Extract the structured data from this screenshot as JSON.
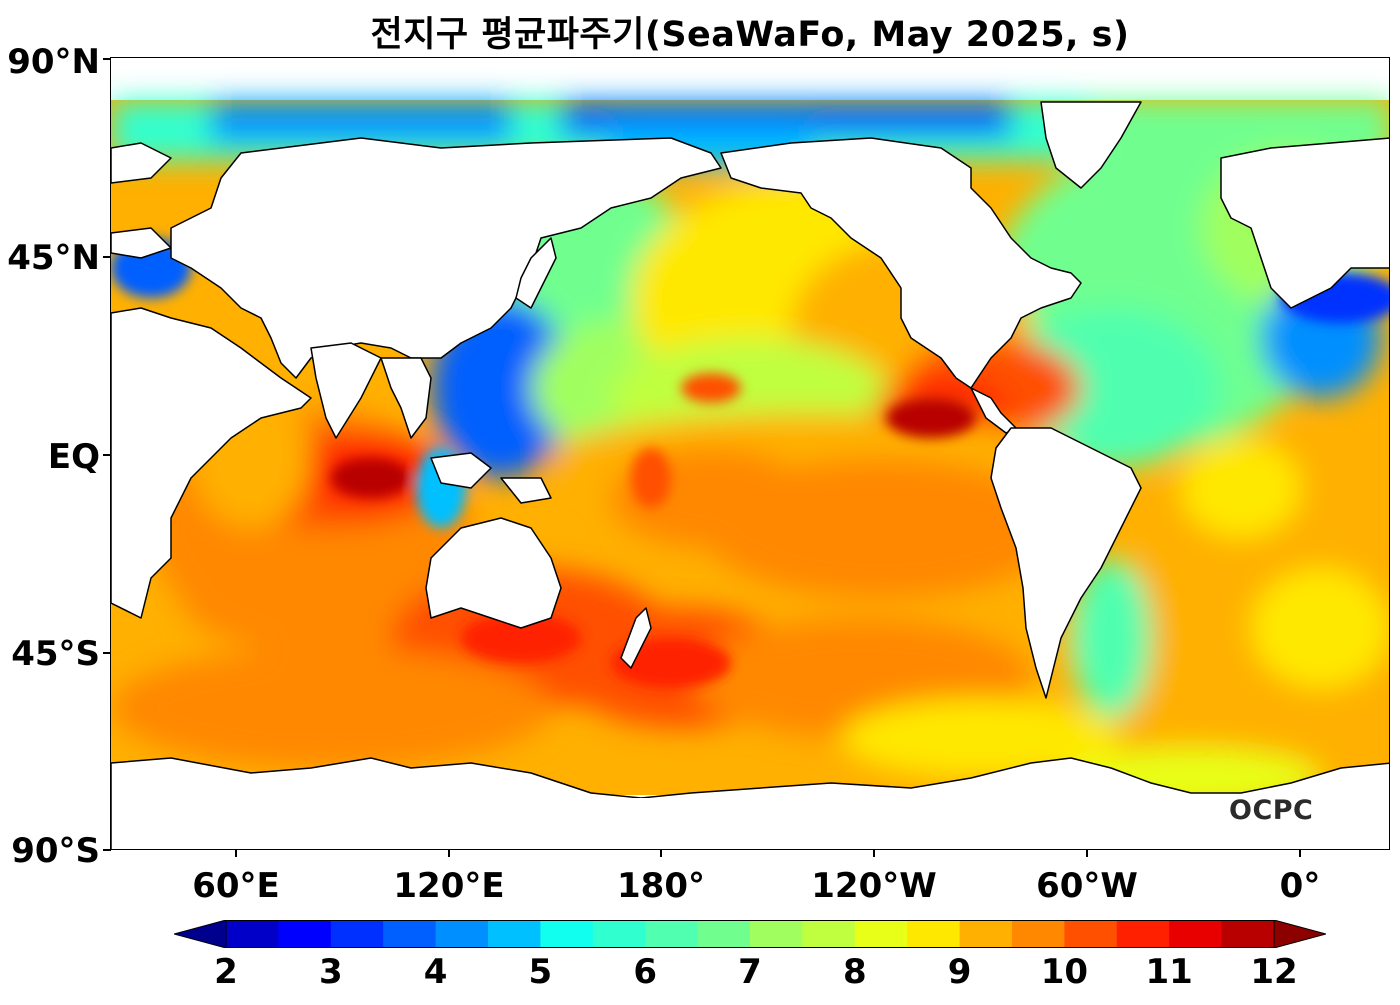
{
  "title": "전지구 평균파주기(SeaWaFo, May 2025, s)",
  "logo": "OCPC",
  "axes": {
    "y_ticks": [
      "90°N",
      "45°N",
      "EQ",
      "45°S",
      "90°S"
    ],
    "x_ticks": [
      "60°E",
      "120°E",
      "180°",
      "120°W",
      "60°W",
      "0°"
    ]
  },
  "colorbar": {
    "min": 2,
    "max": 12,
    "step": 0.5,
    "labels": [
      "2",
      "3",
      "4",
      "5",
      "6",
      "7",
      "8",
      "9",
      "10",
      "11",
      "12"
    ],
    "extend": "both",
    "colormap": "jet",
    "colors": [
      "#00008f",
      "#0000c8",
      "#0000ff",
      "#0030ff",
      "#005fff",
      "#008fff",
      "#00c0ff",
      "#10ffef",
      "#30ffcf",
      "#50ffaf",
      "#70ff8f",
      "#a0ff5f",
      "#c0ff3f",
      "#e8ff17",
      "#ffe800",
      "#ffb000",
      "#ff8800",
      "#ff5000",
      "#ff2000",
      "#e80000",
      "#b80000",
      "#8c0000"
    ],
    "under_color": "#00008f",
    "over_color": "#8c0000"
  },
  "land_color": "#ffffff"
}
